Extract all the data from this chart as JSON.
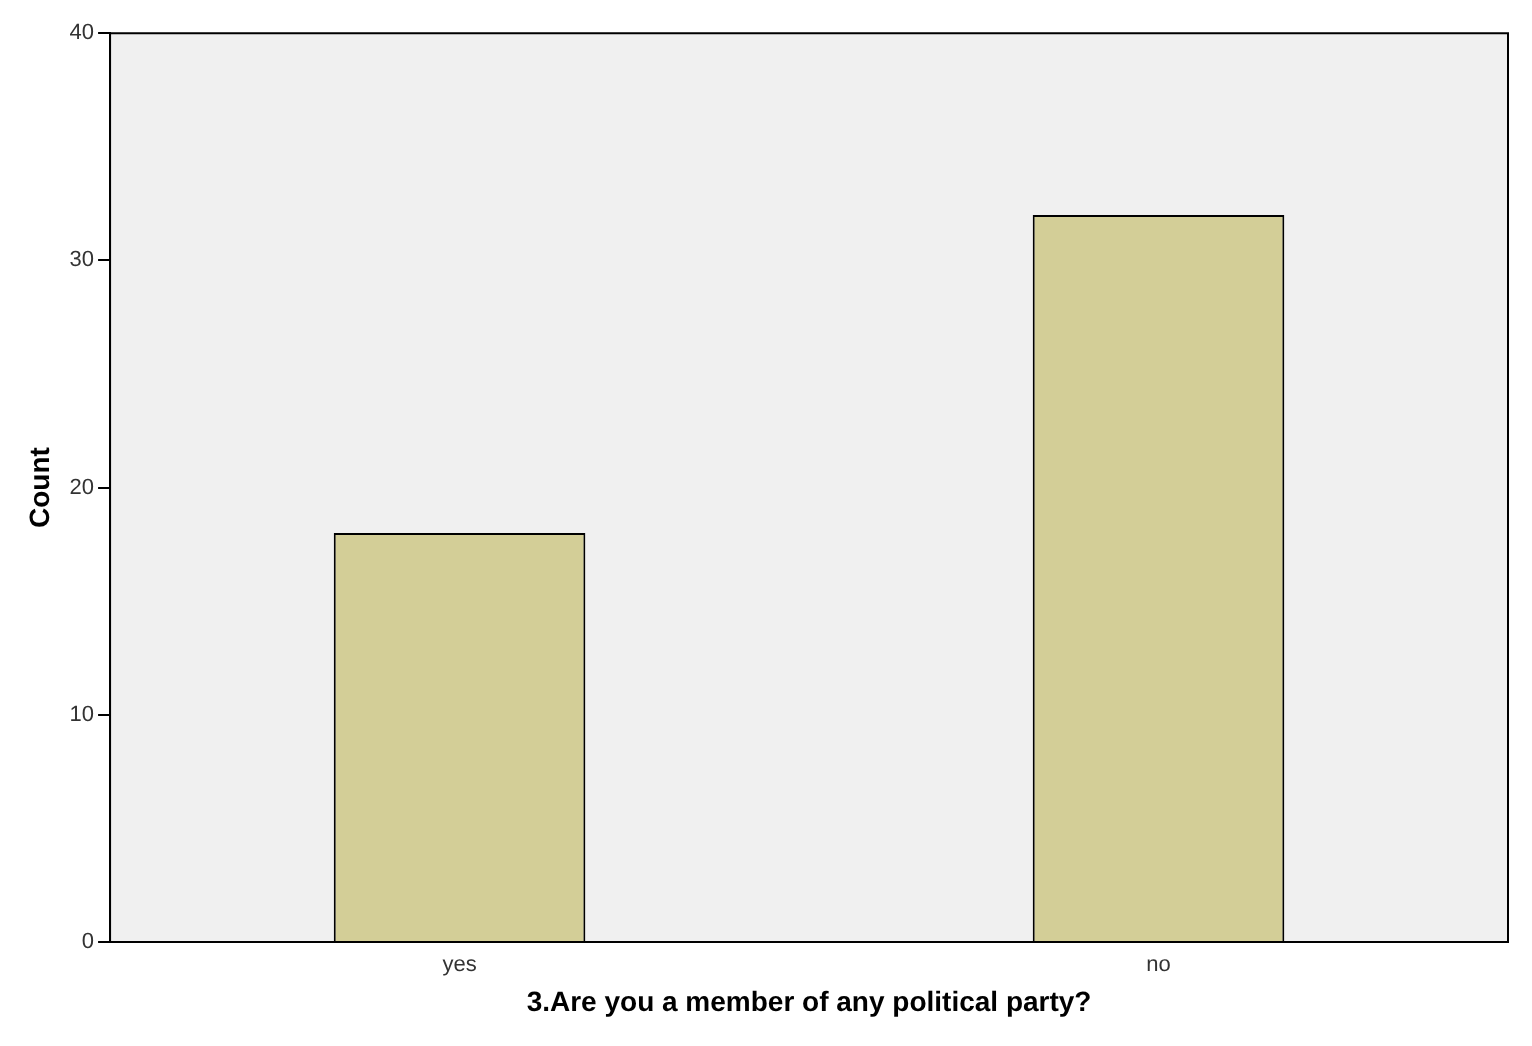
{
  "chart_data": {
    "type": "bar",
    "xlabel": "3.Are you a member of any political party?",
    "ylabel": "Count",
    "categories": [
      "yes",
      "no"
    ],
    "values": [
      18,
      32
    ],
    "color": "#d3ce97",
    "ylim": [
      0,
      40
    ],
    "yticks": [
      0,
      10,
      20,
      30,
      40
    ],
    "grid": false,
    "legend": false
  }
}
